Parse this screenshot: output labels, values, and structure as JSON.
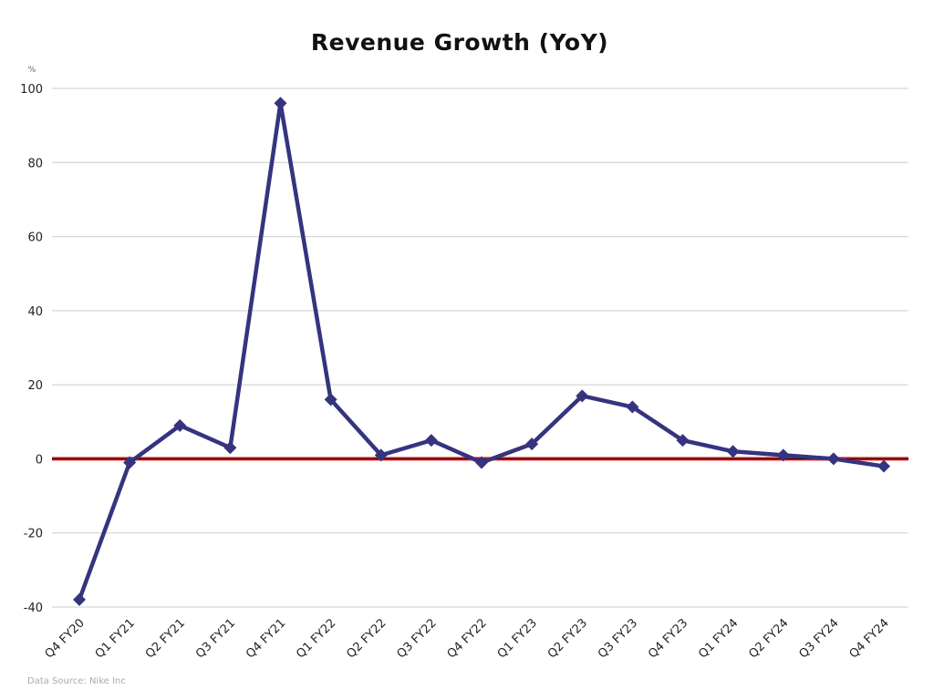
{
  "chart_data": {
    "type": "line",
    "title": "Revenue Growth (YoY)",
    "ylabel": "%",
    "xlabel": "",
    "ylim": [
      -40,
      100
    ],
    "yticks": [
      -40,
      -20,
      0,
      20,
      40,
      60,
      80,
      100
    ],
    "grid": true,
    "categories": [
      "Q4 FY20",
      "Q1 FY21",
      "Q2 FY21",
      "Q3 FY21",
      "Q4 FY21",
      "Q1 FY22",
      "Q2 FY22",
      "Q3 FY22",
      "Q4 FY22",
      "Q1 FY23",
      "Q2 FY23",
      "Q3 FY23",
      "Q4 FY23",
      "Q1 FY24",
      "Q2 FY24",
      "Q3 FY24",
      "Q4 FY24"
    ],
    "series": [
      {
        "name": "Revenue Growth (YoY)",
        "values": [
          -38,
          -1,
          9,
          3,
          96,
          16,
          1,
          5,
          -1,
          4,
          17,
          14,
          5,
          2,
          1,
          0,
          -2
        ],
        "color": "#34347f",
        "marker": "diamond"
      }
    ],
    "reference_line": {
      "value": 0,
      "color": "#e02020"
    },
    "source": "Data Source: Nike Inc"
  }
}
